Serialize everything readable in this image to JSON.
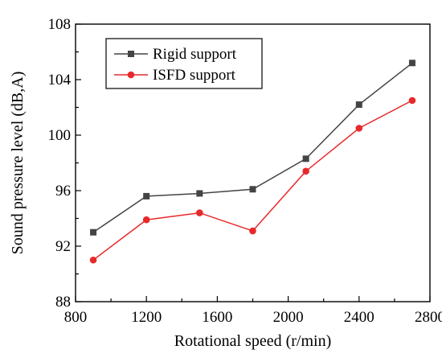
{
  "chart_data": {
    "type": "line",
    "title": "",
    "xlabel": "Rotational speed (r/min)",
    "ylabel": "Sound pressure level (dB,A)",
    "xlim": [
      800,
      2800
    ],
    "ylim": [
      88,
      108
    ],
    "xticks": [
      800,
      1200,
      1600,
      2000,
      2400,
      2800
    ],
    "yticks": [
      88,
      92,
      96,
      100,
      104,
      108
    ],
    "grid": false,
    "legend_position": "top-left",
    "x": [
      900,
      1200,
      1500,
      1800,
      2100,
      2400,
      2700
    ],
    "series": [
      {
        "name": "Rigid support",
        "color": "#444444",
        "marker": "square",
        "values": [
          93.0,
          95.6,
          95.8,
          96.1,
          98.3,
          102.2,
          105.2
        ]
      },
      {
        "name": "ISFD support",
        "color": "#e8292b",
        "marker": "circle",
        "values": [
          91.0,
          93.9,
          94.4,
          93.1,
          97.4,
          100.5,
          102.5
        ]
      }
    ]
  }
}
